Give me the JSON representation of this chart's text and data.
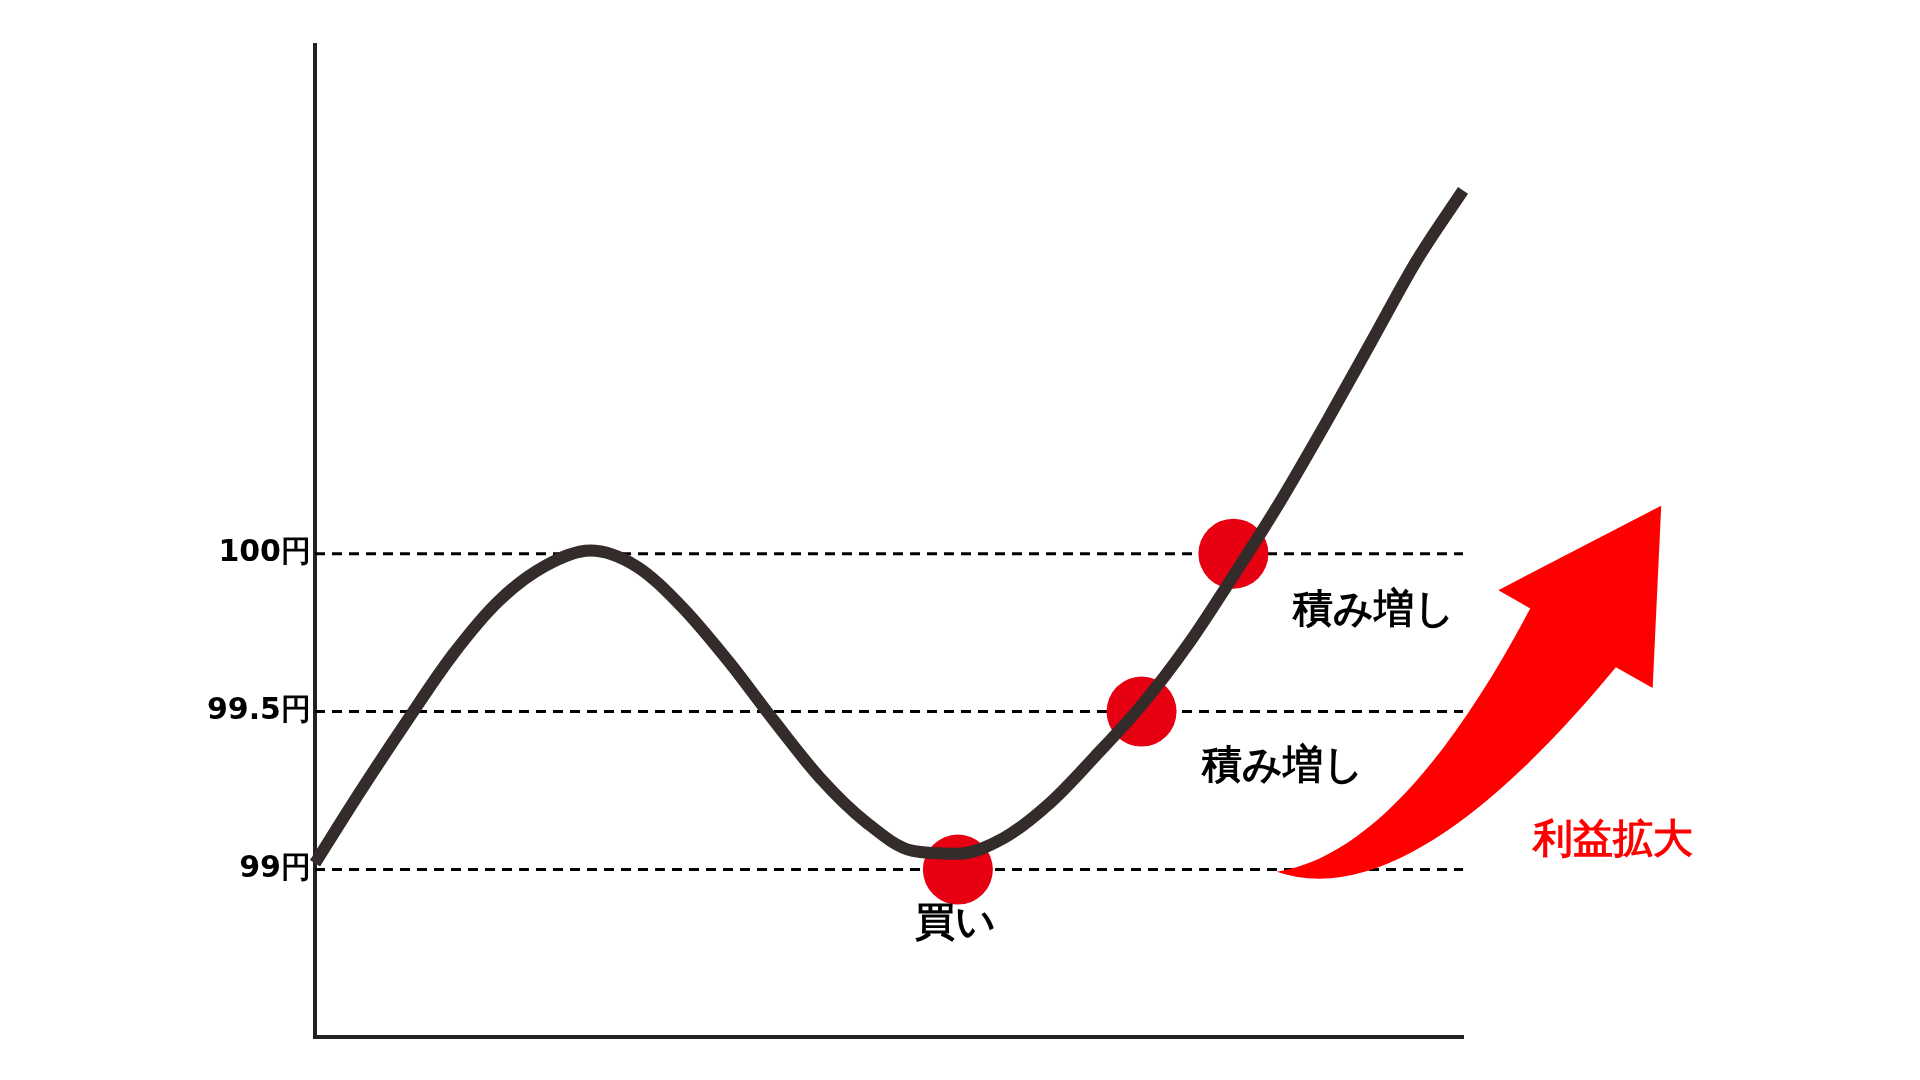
{
  "chart_data": {
    "type": "line",
    "categories": [
      null,
      null,
      null,
      null,
      null,
      null,
      null,
      null,
      null,
      null,
      null,
      null,
      null,
      null,
      null,
      null,
      null,
      null,
      null,
      null,
      null,
      null,
      null,
      null,
      null,
      null
    ],
    "ylim": [
      98.47,
      101.61
    ],
    "yticks": [
      {
        "value": 99,
        "label": "99円"
      },
      {
        "value": 99.5,
        "label": "99.5円"
      },
      {
        "value": 100,
        "label": "100円"
      }
    ],
    "tick_labels": "y",
    "series": [
      {
        "color": "#332c2b",
        "marker": "none",
        "values": [
          99.02,
          99.25,
          99.47,
          99.68,
          99.85,
          99.96,
          100.01,
          99.96,
          99.83,
          99.66,
          99.47,
          99.29,
          99.15,
          99.06,
          99.05,
          99.1,
          99.21,
          99.36,
          99.52,
          99.71,
          99.93,
          100.16,
          100.41,
          100.67,
          100.93,
          101.15
        ]
      },
      {
        "type": "scatter",
        "color": "#e60012",
        "marker": "circle",
        "values": [
          null,
          null,
          null,
          null,
          null,
          null,
          null,
          null,
          null,
          null,
          null,
          null,
          null,
          null,
          99,
          null,
          null,
          null,
          99.5,
          null,
          100,
          null,
          null,
          null,
          null,
          null
        ]
      }
    ],
    "ref_lines": [
      {
        "axis": "y",
        "value": 99,
        "color": "#000000",
        "line_style": "dashed"
      },
      {
        "axis": "y",
        "value": 99.5,
        "color": "#000000",
        "line_style": "dashed"
      },
      {
        "axis": "y",
        "value": 100,
        "color": "#000000",
        "line_style": "dashed"
      }
    ],
    "annotations": [
      "買い",
      "積み増し",
      "積み増し",
      "利益拡大"
    ]
  }
}
